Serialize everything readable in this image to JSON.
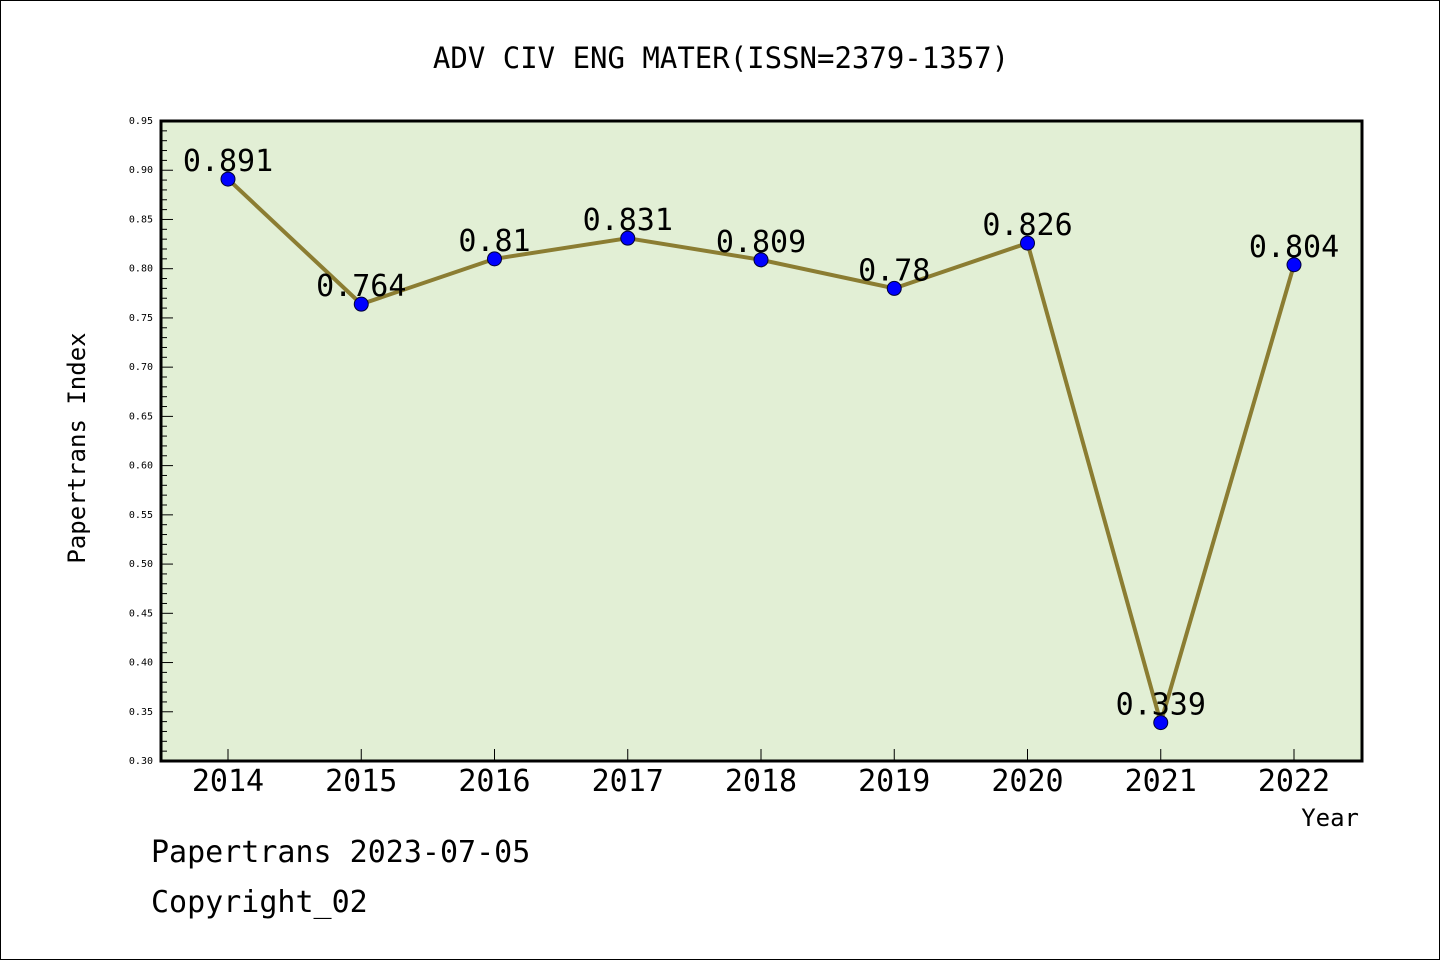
{
  "chart_data": {
    "type": "line",
    "title": "ADV CIV ENG MATER(ISSN=2379-1357)",
    "xlabel": "Year",
    "ylabel": "Papertrans Index",
    "categories": [
      "2014",
      "2015",
      "2016",
      "2017",
      "2018",
      "2019",
      "2020",
      "2021",
      "2022"
    ],
    "values": [
      0.891,
      0.764,
      0.81,
      0.831,
      0.809,
      0.78,
      0.826,
      0.339,
      0.804
    ],
    "data_labels": [
      "0.891",
      "0.764",
      "0.81",
      "0.831",
      "0.809",
      "0.78",
      "0.826",
      "0.339",
      "0.804"
    ],
    "ylim": [
      0.3,
      0.95
    ],
    "yticks": [
      "0.30",
      "0.35",
      "0.40",
      "0.45",
      "0.50",
      "0.55",
      "0.60",
      "0.65",
      "0.70",
      "0.75",
      "0.80",
      "0.85",
      "0.90",
      "0.95"
    ],
    "grid": false,
    "legend": "none"
  },
  "colors": {
    "plot_background": "#e2efd5",
    "line": "#8b7d32",
    "marker": "#0000ff",
    "frame": "#000000"
  },
  "footer": {
    "source": "Papertrans 2023-07-05",
    "copyright": "Copyright_02"
  }
}
